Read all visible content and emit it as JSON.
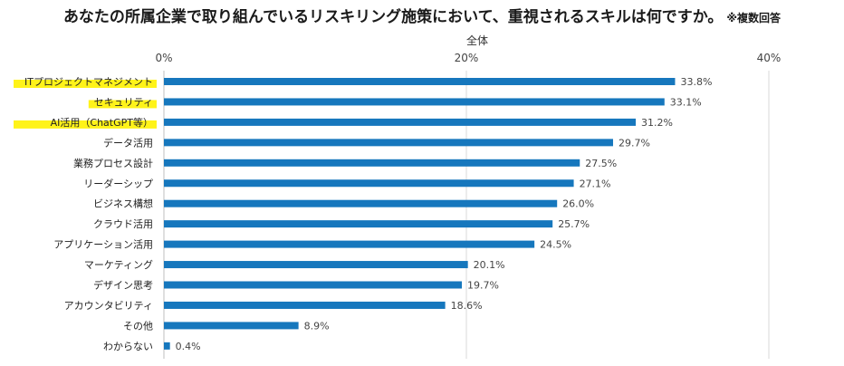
{
  "chart_data": {
    "type": "bar",
    "orientation": "horizontal",
    "title": "あなたの所属企業で取り組んでいるリスキリング施策において、重視されるスキルは何ですか。",
    "title_note": "※複数回答",
    "series_label": "全体",
    "categories": [
      "ITプロジェクトマネジメント",
      "セキュリティ",
      "AI活用（ChatGPT等）",
      "データ活用",
      "業務プロセス設計",
      "リーダーシップ",
      "ビジネス構想",
      "クラウド活用",
      "アプリケーション活用",
      "マーケティング",
      "デザイン思考",
      "アカウンタビリティ",
      "その他",
      "わからない"
    ],
    "values": [
      33.8,
      33.1,
      31.2,
      29.7,
      27.5,
      27.1,
      26.0,
      25.7,
      24.5,
      20.1,
      19.7,
      18.6,
      8.9,
      0.4
    ],
    "value_labels": [
      "33.8%",
      "33.1%",
      "31.2%",
      "29.7%",
      "27.5%",
      "27.1%",
      "26.0%",
      "25.7%",
      "24.5%",
      "20.1%",
      "19.7%",
      "18.6%",
      "8.9%",
      "0.4%"
    ],
    "highlighted_categories": [
      0,
      1,
      2
    ],
    "xlim": [
      0,
      40
    ],
    "xticks": [
      "0%",
      "20%",
      "40%"
    ],
    "xtick_values": [
      0,
      20,
      40
    ],
    "grid": true,
    "legend": "none",
    "bar_color": "#1677bd",
    "highlight_color": "#fff200"
  }
}
